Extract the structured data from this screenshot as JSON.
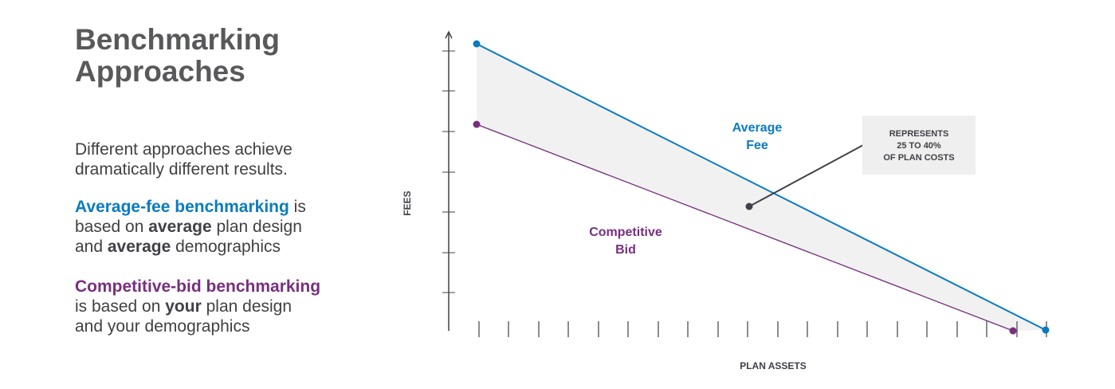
{
  "title": {
    "line1": "Benchmarking",
    "line2": "Approaches"
  },
  "intro": {
    "line1": "Different approaches achieve",
    "line2": "dramatically different results."
  },
  "average_fee": {
    "term": "Average-fee benchmarking",
    "is": " is",
    "based_on": "based on ",
    "avg1": "average",
    "plan_design": " plan design",
    "and": "and ",
    "avg2": "average",
    "demographics": " demographics"
  },
  "competitive_bid": {
    "term": "Competitive-bid benchmarking",
    "is_based_on": "is based on ",
    "your": "your",
    "plan_design": " plan design",
    "line3": "and your demographics"
  },
  "chart_labels": {
    "average_fee_line1": "Average",
    "average_fee_line2": "Fee",
    "competitive_line1": "Competitive",
    "competitive_line2": "Bid",
    "callout_line1": "REPRESENTS",
    "callout_line2": "25 TO 40%",
    "callout_line3": "OF PLAN COSTS",
    "x_axis": "PLAN ASSETS",
    "y_axis": "FEES"
  },
  "colors": {
    "average_fee": "#0a7bc1",
    "competitive_bid": "#772f7e",
    "gap_fill": "#f1f1f1",
    "axis": "#404048"
  }
}
